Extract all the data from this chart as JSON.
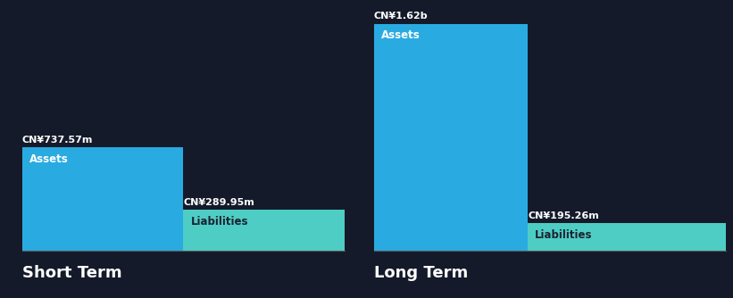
{
  "background_color": "#141A2A",
  "short_term": {
    "assets_value": 737.57,
    "liabilities_value": 289.95,
    "assets_label": "CN¥737.57m",
    "liabilities_label": "CN¥289.95m",
    "assets_color": "#29ABE2",
    "liabilities_color": "#4ECDC4",
    "label_assets": "Assets",
    "label_liabilities": "Liabilities",
    "title": "Short Term"
  },
  "long_term": {
    "assets_value": 1620,
    "liabilities_value": 195.26,
    "assets_label": "CN¥1.62b",
    "liabilities_label": "CN¥195.26m",
    "assets_color": "#29ABE2",
    "liabilities_color": "#4ECDC4",
    "label_assets": "Assets",
    "label_liabilities": "Liabilities",
    "title": "Long Term"
  },
  "text_color": "#FFFFFF",
  "liab_text_color": "#1A2333",
  "label_fontsize": 8.5,
  "title_fontsize": 13,
  "value_fontsize": 8
}
